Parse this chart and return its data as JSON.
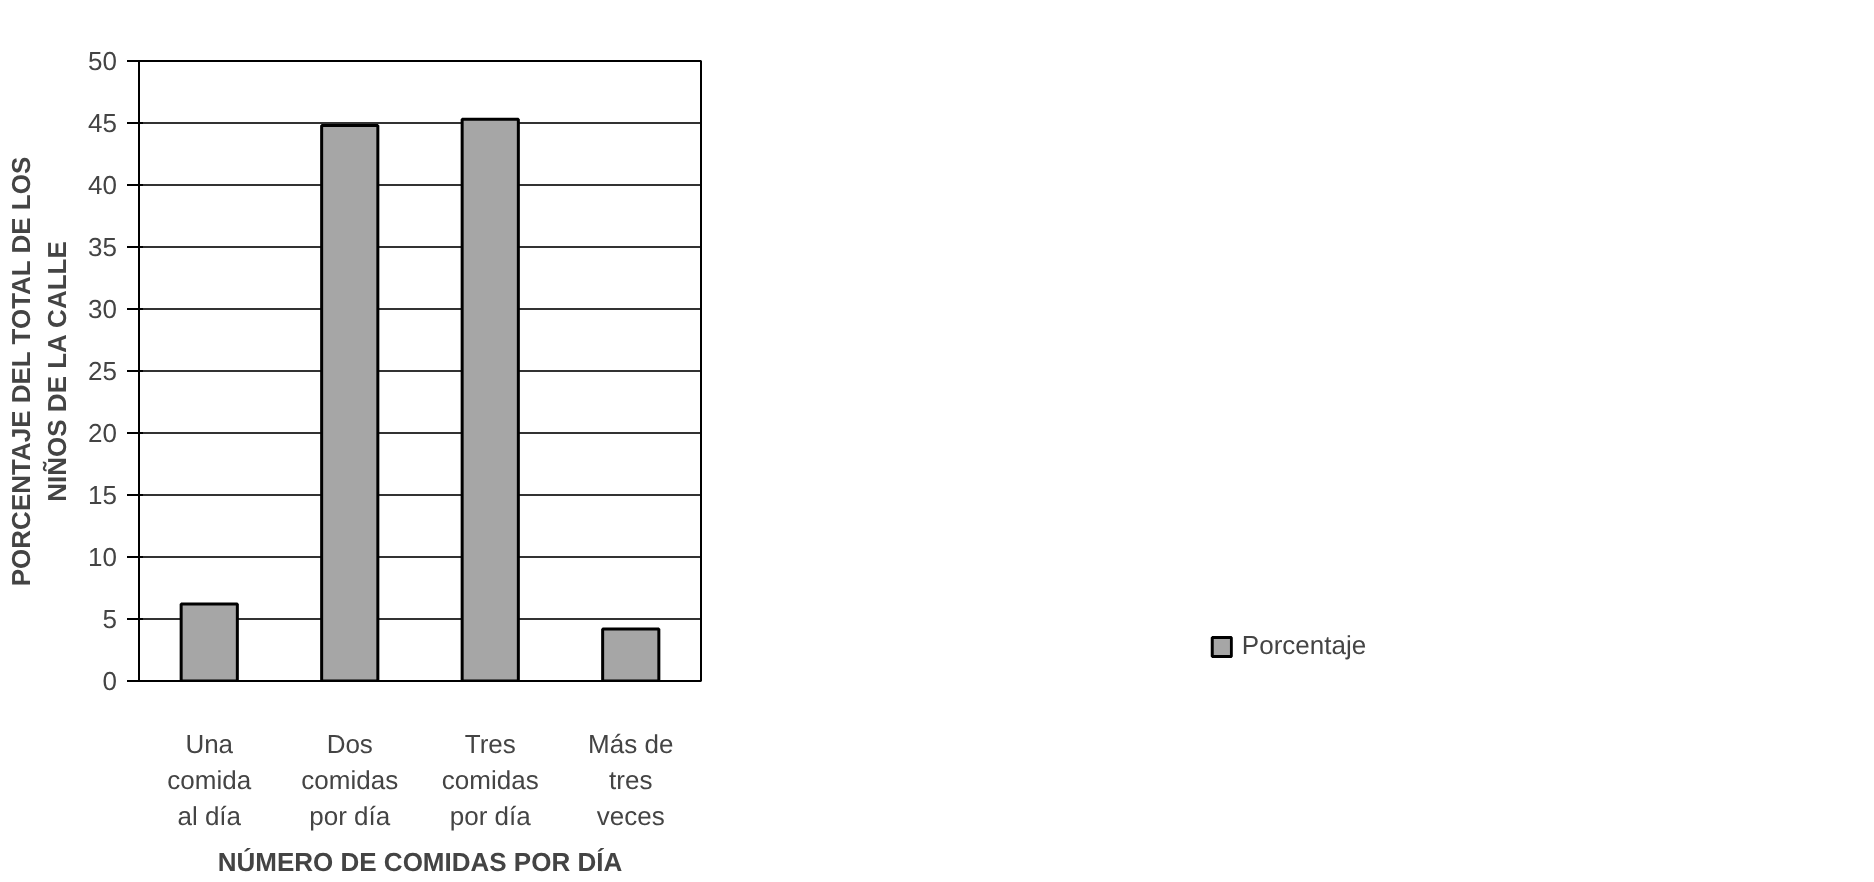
{
  "chart_data": {
    "type": "bar",
    "categories": [
      "Una\ncomida\nal día",
      "Dos\ncomidas\npor día",
      "Tres\ncomidas\npor día",
      "Más de\ntres\nveces"
    ],
    "series": [
      {
        "name": "Porcentaje",
        "color": "#a6a6a6",
        "values": [
          6.2,
          44.8,
          45.3,
          4.2
        ]
      }
    ],
    "xlabel": "NÚMERO DE COMIDAS POR DÍA",
    "ylabel": "PORCENTAJE DEL TOTAL DE LOS\nNIÑOS DE LA CALLE",
    "ylim": [
      0,
      50
    ],
    "yticks": [
      0,
      5,
      10,
      15,
      20,
      25,
      30,
      35,
      40,
      45,
      50
    ],
    "grid": "y",
    "legend": "right"
  }
}
